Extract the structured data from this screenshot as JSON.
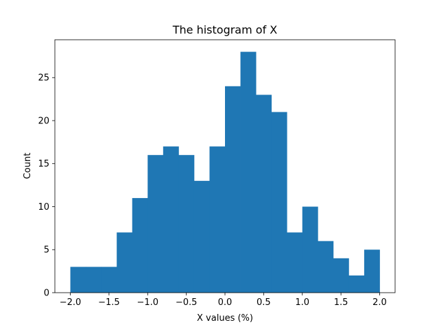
{
  "chart_data": {
    "type": "bar",
    "title": "The histogram of X",
    "xlabel": "X values (%)",
    "ylabel": "Count",
    "bin_edges": [
      -2.0,
      -1.8,
      -1.6,
      -1.4,
      -1.2,
      -1.0,
      -0.8,
      -0.6,
      -0.4,
      -0.2,
      0.0,
      0.2,
      0.4,
      0.6,
      0.8,
      1.0,
      1.2,
      1.4,
      1.6,
      1.8,
      2.0
    ],
    "values": [
      3,
      3,
      3,
      7,
      11,
      16,
      17,
      16,
      13,
      17,
      24,
      28,
      23,
      21,
      7,
      10,
      6,
      4,
      2,
      5
    ],
    "xlim": [
      -2.2,
      2.2
    ],
    "ylim": [
      0,
      29.4
    ],
    "xticks": [
      "−2.0",
      "−1.5",
      "−1.0",
      "−0.5",
      "0.0",
      "0.5",
      "1.0",
      "1.5",
      "2.0"
    ],
    "xtick_values": [
      -2.0,
      -1.5,
      -1.0,
      -0.5,
      0.0,
      0.5,
      1.0,
      1.5,
      2.0
    ],
    "yticks": [
      "0",
      "5",
      "10",
      "15",
      "20",
      "25"
    ],
    "ytick_values": [
      0,
      5,
      10,
      15,
      20,
      25
    ],
    "grid": false,
    "bar_color": "#1f77b4"
  }
}
